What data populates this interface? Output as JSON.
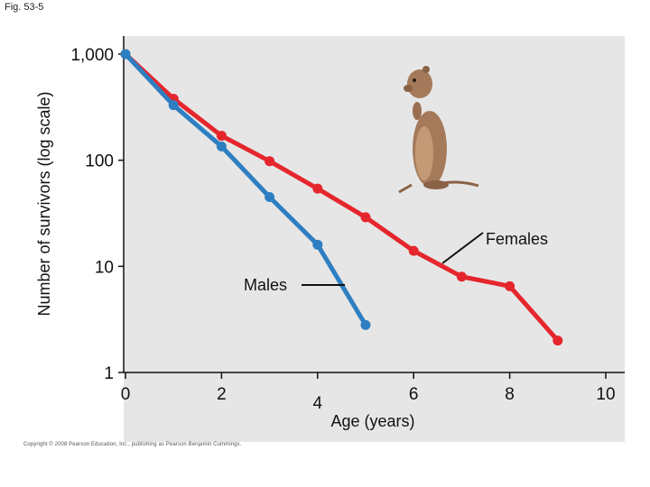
{
  "figure_label": "Fig. 53-5",
  "copyright": "Copyright © 2008 Pearson Education, Inc., publishing as Pearson Benjamin Cummings.",
  "chart_data": {
    "type": "line",
    "xlabel": "Age (years)",
    "ylabel": "Number of survivors (log scale)",
    "xlim": [
      0,
      10
    ],
    "ylim": [
      1,
      1000
    ],
    "yscale": "log",
    "x_ticks": [
      "0",
      "2",
      "4",
      "6",
      "8",
      "10"
    ],
    "y_ticks": [
      "1",
      "10",
      "100",
      "1,000"
    ],
    "grid": false,
    "series": [
      {
        "name": "Females",
        "color": "#e5262c",
        "x": [
          0,
          1,
          2,
          3,
          4,
          5,
          6,
          7,
          8,
          9
        ],
        "y": [
          1000,
          380,
          170,
          98,
          54,
          29,
          14,
          8,
          6.5,
          2
        ]
      },
      {
        "name": "Males",
        "color": "#2e7fc1",
        "x": [
          0,
          1,
          2,
          3,
          4,
          5
        ],
        "y": [
          1000,
          330,
          135,
          45,
          16,
          2.8
        ]
      }
    ]
  }
}
